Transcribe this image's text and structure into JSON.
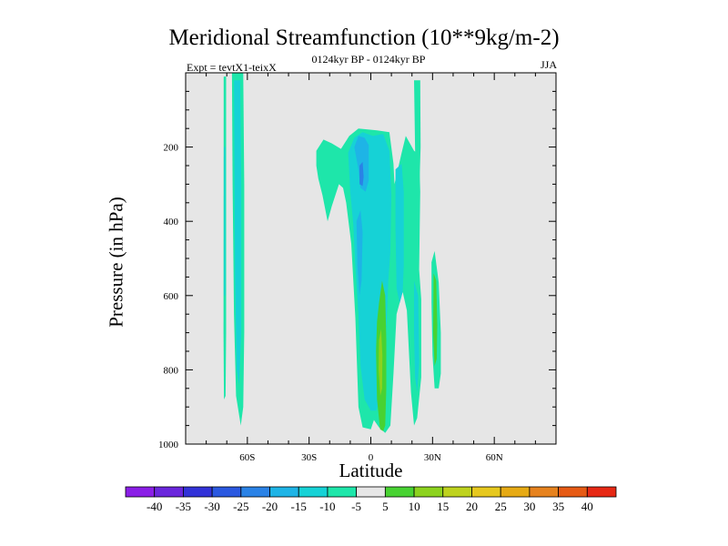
{
  "chart_data": {
    "type": "contour",
    "title": "Meridional Streamfunction (10**9kg/m-2)",
    "subtitle": "0124kyr BP - 0124kyr BP",
    "left_label": "Expt = tevtX1-teixX",
    "right_label": "JJA",
    "xlabel": "Latitude",
    "ylabel": "Pressure (in hPa)",
    "xlim": [
      -90,
      90
    ],
    "ylim": [
      1000,
      0
    ],
    "x_ticks": [
      {
        "value": -60,
        "label": "60S"
      },
      {
        "value": -30,
        "label": "30S"
      },
      {
        "value": 0,
        "label": "0"
      },
      {
        "value": 30,
        "label": "30N"
      },
      {
        "value": 60,
        "label": "60N"
      }
    ],
    "y_ticks": [
      {
        "value": 200,
        "label": "200"
      },
      {
        "value": 400,
        "label": "400"
      },
      {
        "value": 600,
        "label": "600"
      },
      {
        "value": 800,
        "label": "800"
      },
      {
        "value": 1000,
        "label": "1000"
      }
    ],
    "background_color": "#e6e6e6",
    "colorbar": {
      "levels": [
        -40,
        -35,
        -30,
        -25,
        -20,
        -15,
        -10,
        -5,
        5,
        10,
        15,
        20,
        25,
        30,
        35,
        40
      ],
      "colors": [
        "#8a1ee6",
        "#6a26dc",
        "#3232d8",
        "#2a58e0",
        "#2a82e6",
        "#1eb4e6",
        "#16d2d6",
        "#1ee6aa",
        "#e6e6e6",
        "#48d232",
        "#8cd21e",
        "#bed21e",
        "#e6c81e",
        "#e6aa14",
        "#e6821e",
        "#e65a14",
        "#e62814"
      ]
    },
    "contours": [
      {
        "name": "cyan",
        "color": "#1ee6aa",
        "regions": [
          {
            "name": "far-south-thin",
            "points": [
              [
                -71.5,
                10
              ],
              [
                -70.3,
                10
              ],
              [
                -70.3,
                700
              ],
              [
                -70.6,
                870
              ],
              [
                -71.4,
                880
              ],
              [
                -71.6,
                700
              ]
            ]
          },
          {
            "name": "south-60s",
            "points": [
              [
                -67.5,
                0
              ],
              [
                -62,
                0
              ],
              [
                -61.5,
                300
              ],
              [
                -61.5,
                700
              ],
              [
                -62,
                900
              ],
              [
                -63.2,
                950
              ],
              [
                -65.5,
                870
              ],
              [
                -66.5,
                650
              ],
              [
                -67.2,
                300
              ]
            ]
          },
          {
            "name": "tropical-main",
            "points": [
              [
                -26.5,
                210
              ],
              [
                -23,
                180
              ],
              [
                -19,
                190
              ],
              [
                -14.5,
                205
              ],
              [
                -10.5,
                170
              ],
              [
                -6,
                150
              ],
              [
                3,
                155
              ],
              [
                9,
                160
              ],
              [
                11,
                245
              ],
              [
                11.5,
                300
              ],
              [
                15,
                215
              ],
              [
                17,
                170
              ],
              [
                21,
                210
              ],
              [
                23.5,
                220
              ],
              [
                24,
                320
              ],
              [
                23.5,
                530
              ],
              [
                24.5,
                610
              ],
              [
                24.5,
                820
              ],
              [
                22.5,
                930
              ],
              [
                21,
                950
              ],
              [
                19.5,
                860
              ],
              [
                17.5,
                640
              ],
              [
                15.5,
                590
              ],
              [
                12.5,
                650
              ],
              [
                11,
                810
              ],
              [
                9.5,
                950
              ],
              [
                7,
                970
              ],
              [
                4,
                955
              ],
              [
                1.5,
                935
              ],
              [
                0,
                960
              ],
              [
                -4,
                955
              ],
              [
                -6,
                900
              ],
              [
                -7.5,
                660
              ],
              [
                -9.5,
                460
              ],
              [
                -12,
                350
              ],
              [
                -13.5,
                310
              ],
              [
                -15.5,
                300
              ],
              [
                -19,
                360
              ],
              [
                -21,
                400
              ],
              [
                -23.5,
                330
              ],
              [
                -25.5,
                285
              ],
              [
                -26.5,
                250
              ]
            ]
          },
          {
            "name": "nh-30n-column",
            "points": [
              [
                21,
                20
              ],
              [
                24,
                20
              ],
              [
                24.2,
                200
              ],
              [
                23.5,
                330
              ],
              [
                22,
                330
              ],
              [
                21.5,
                200
              ]
            ]
          },
          {
            "name": "nh-35n-patch",
            "points": [
              [
                29.5,
                510
              ],
              [
                31,
                480
              ],
              [
                33,
                565
              ],
              [
                34,
                700
              ],
              [
                34,
                810
              ],
              [
                33,
                850
              ],
              [
                31,
                850
              ],
              [
                30,
                760
              ],
              [
                29.5,
                620
              ]
            ]
          }
        ]
      },
      {
        "name": "teal",
        "color": "#16d2d6",
        "regions": [
          {
            "name": "s60-inner",
            "points": [
              [
                -66.5,
                20
              ],
              [
                -63.5,
                20
              ],
              [
                -63,
                300
              ],
              [
                -63,
                700
              ],
              [
                -64,
                840
              ],
              [
                -65.2,
                800
              ],
              [
                -66,
                550
              ]
            ]
          },
          {
            "name": "s70-line",
            "points": [
              [
                -71.3,
                200
              ],
              [
                -70.7,
                200
              ],
              [
                -70.7,
                600
              ],
              [
                -71.3,
                600
              ]
            ]
          },
          {
            "name": "tropical-teal-main",
            "points": [
              [
                -11,
                215
              ],
              [
                -8,
                175
              ],
              [
                -4,
                160
              ],
              [
                1,
                170
              ],
              [
                6,
                165
              ],
              [
                9,
                210
              ],
              [
                10,
                330
              ],
              [
                9.5,
                480
              ],
              [
                8.5,
                560
              ],
              [
                7.5,
                690
              ],
              [
                6,
                800
              ],
              [
                5,
                880
              ],
              [
                2.5,
                910
              ],
              [
                0,
                910
              ],
              [
                -3,
                880
              ],
              [
                -5,
                790
              ],
              [
                -6,
                650
              ],
              [
                -7.5,
                520
              ],
              [
                -8.5,
                410
              ],
              [
                -10,
                320
              ]
            ]
          },
          {
            "name": "teal-16n",
            "points": [
              [
                12,
                260
              ],
              [
                15,
                245
              ],
              [
                16,
                320
              ],
              [
                16,
                520
              ],
              [
                15.5,
                590
              ],
              [
                14,
                620
              ],
              [
                12.5,
                580
              ],
              [
                12,
                420
              ]
            ]
          },
          {
            "name": "teal-22n",
            "points": [
              [
                21,
                560
              ],
              [
                23,
                600
              ],
              [
                23.5,
                780
              ],
              [
                22.5,
                860
              ],
              [
                21.5,
                820
              ],
              [
                21,
                700
              ]
            ]
          }
        ]
      },
      {
        "name": "lightblue",
        "color": "#1eb4e6",
        "regions": [
          {
            "name": "lb-core",
            "points": [
              [
                -8,
                200
              ],
              [
                -6,
                170
              ],
              [
                -3,
                175
              ],
              [
                -1,
                195
              ],
              [
                -1,
                290
              ],
              [
                -2.5,
                320
              ],
              [
                -5,
                310
              ],
              [
                -6,
                260
              ]
            ]
          },
          {
            "name": "lb-lower",
            "points": [
              [
                -7,
                400
              ],
              [
                -5,
                370
              ],
              [
                -4,
                430
              ],
              [
                -4.5,
                560
              ],
              [
                -5.5,
                600
              ],
              [
                -6.5,
                520
              ]
            ]
          }
        ]
      },
      {
        "name": "blue",
        "color": "#2a82e6",
        "regions": [
          {
            "name": "blue-core",
            "points": [
              [
                -5.5,
                250
              ],
              [
                -4,
                240
              ],
              [
                -3.5,
                280
              ],
              [
                -4,
                305
              ],
              [
                -5.5,
                300
              ]
            ]
          }
        ]
      },
      {
        "name": "green",
        "color": "#48d232",
        "regions": [
          {
            "name": "green-plume",
            "points": [
              [
                4,
                620
              ],
              [
                5.5,
                560
              ],
              [
                7,
                600
              ],
              [
                7.5,
                720
              ],
              [
                7.5,
                850
              ],
              [
                7,
                950
              ],
              [
                6,
                965
              ],
              [
                4.5,
                960
              ],
              [
                3,
                880
              ],
              [
                2.5,
                750
              ],
              [
                3,
                670
              ]
            ]
          },
          {
            "name": "green-35n",
            "points": [
              [
                30.5,
                540
              ],
              [
                31.8,
                560
              ],
              [
                32.3,
                680
              ],
              [
                32,
                770
              ],
              [
                31,
                790
              ],
              [
                30.3,
                700
              ]
            ]
          }
        ]
      },
      {
        "name": "yellowgreen",
        "color": "#8cd21e",
        "regions": [
          {
            "name": "yg-core",
            "points": [
              [
                4,
                720
              ],
              [
                5,
                690
              ],
              [
                5.6,
                760
              ],
              [
                5.5,
                850
              ],
              [
                4.6,
                870
              ],
              [
                3.8,
                800
              ]
            ]
          }
        ]
      }
    ]
  }
}
